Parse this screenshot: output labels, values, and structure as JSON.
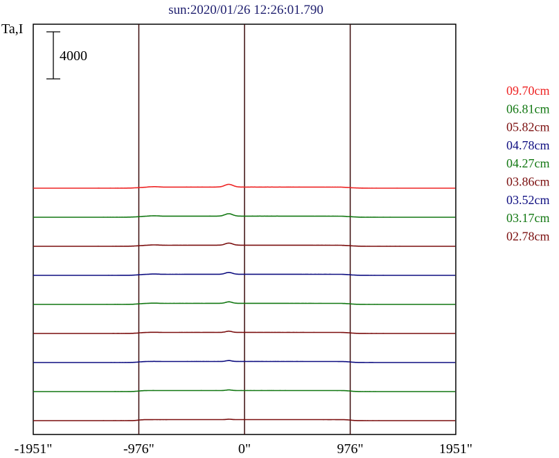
{
  "chart_data": {
    "type": "line",
    "title": "sun:2020/01/26 12:26:01.790",
    "ylabel": "Ta,I",
    "scale_bar_label": "4000",
    "scale_bar_value": 4000,
    "xlim": [
      -1951,
      1951
    ],
    "x_ticks": [
      {
        "value": -1951,
        "label": "-1951\""
      },
      {
        "value": -976,
        "label": "-976\""
      },
      {
        "value": 0,
        "label": "0\""
      },
      {
        "value": 976,
        "label": "976\""
      },
      {
        "value": 1951,
        "label": "1951\""
      }
    ],
    "vertical_lines": [
      -976,
      0,
      976
    ],
    "legend_position": "right",
    "series": [
      {
        "name": "09.70cm",
        "color": "#ee2222"
      },
      {
        "name": "06.81cm",
        "color": "#117711"
      },
      {
        "name": "05.82cm",
        "color": "#7a0d0d"
      },
      {
        "name": "04.78cm",
        "color": "#0d0d80"
      },
      {
        "name": "04.27cm",
        "color": "#117711"
      },
      {
        "name": "03.86cm",
        "color": "#7a0d0d"
      },
      {
        "name": "03.52cm",
        "color": "#0d0d80"
      },
      {
        "name": "03.17cm",
        "color": "#117711"
      },
      {
        "name": "02.78cm",
        "color": "#7a0d0d"
      }
    ]
  }
}
